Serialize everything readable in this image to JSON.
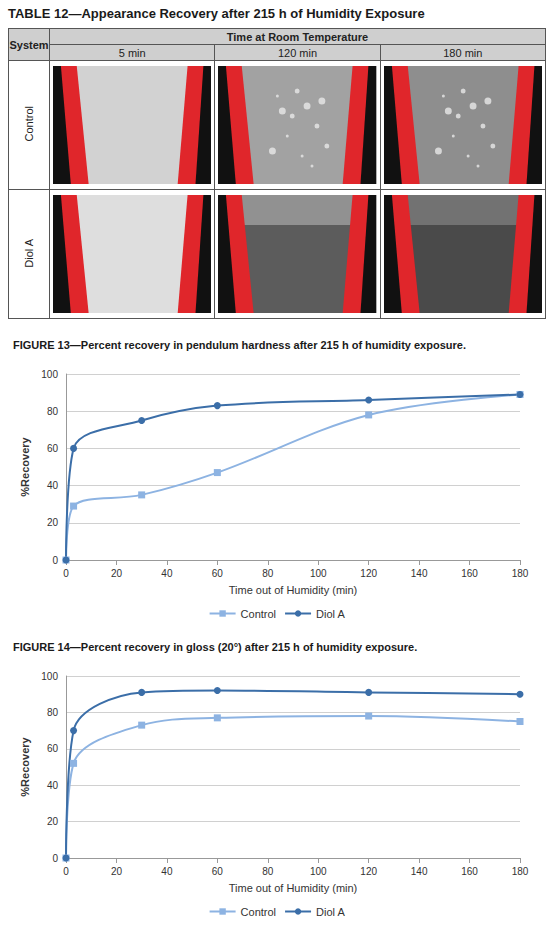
{
  "table": {
    "title": "TABLE 12—Appearance Recovery after 215 h of Humidity Exposure",
    "header": {
      "system": "System",
      "group": "Time at Room Temperature",
      "columns": [
        "5 min",
        "120 min",
        "180 min"
      ]
    },
    "rows": [
      "Control",
      "Diol A"
    ]
  },
  "chart_data": [
    {
      "type": "line",
      "title": "FIGURE 13—Percent recovery in pendulum hardness after 215 h of humidity exposure.",
      "x_label": "Time out of Humidity (min)",
      "y_label": "%Recovery",
      "x": [
        0,
        3,
        30,
        60,
        120,
        180
      ],
      "series": [
        {
          "name": "Control",
          "color": "#8db3e2",
          "marker": "square",
          "line_style": "solid",
          "values": [
            0,
            29,
            35,
            47,
            78,
            89
          ]
        },
        {
          "name": "Diol A",
          "color": "#3b6ea8",
          "marker": "circle",
          "line_style": "solid",
          "values": [
            0,
            60,
            75,
            83,
            86,
            89
          ]
        }
      ],
      "xlim": [
        0,
        180
      ],
      "xticks": [
        0,
        20,
        40,
        60,
        80,
        100,
        120,
        140,
        160,
        180
      ],
      "ylim": [
        0,
        100
      ],
      "yticks": [
        0,
        20,
        40,
        60,
        80,
        100
      ],
      "grid": true,
      "legend": "bottom"
    },
    {
      "type": "line",
      "title": "FIGURE 14—Percent recovery in gloss (20°) after 215 h of humidity exposure.",
      "x_label": "Time out of Humidity (min)",
      "y_label": "%Recovery",
      "x": [
        0,
        3,
        30,
        60,
        120,
        180
      ],
      "series": [
        {
          "name": "Control",
          "color": "#8db3e2",
          "marker": "square",
          "line_style": "solid",
          "values": [
            0,
            52,
            73,
            77,
            78,
            75
          ]
        },
        {
          "name": "Diol A",
          "color": "#3b6ea8",
          "marker": "circle",
          "line_style": "solid",
          "values": [
            0,
            70,
            91,
            92,
            91,
            90
          ]
        }
      ],
      "xlim": [
        0,
        180
      ],
      "xticks": [
        0,
        20,
        40,
        60,
        80,
        100,
        120,
        140,
        160,
        180
      ],
      "ylim": [
        0,
        100
      ],
      "yticks": [
        0,
        20,
        40,
        60,
        80,
        100
      ],
      "grid": true,
      "legend": "bottom"
    }
  ]
}
